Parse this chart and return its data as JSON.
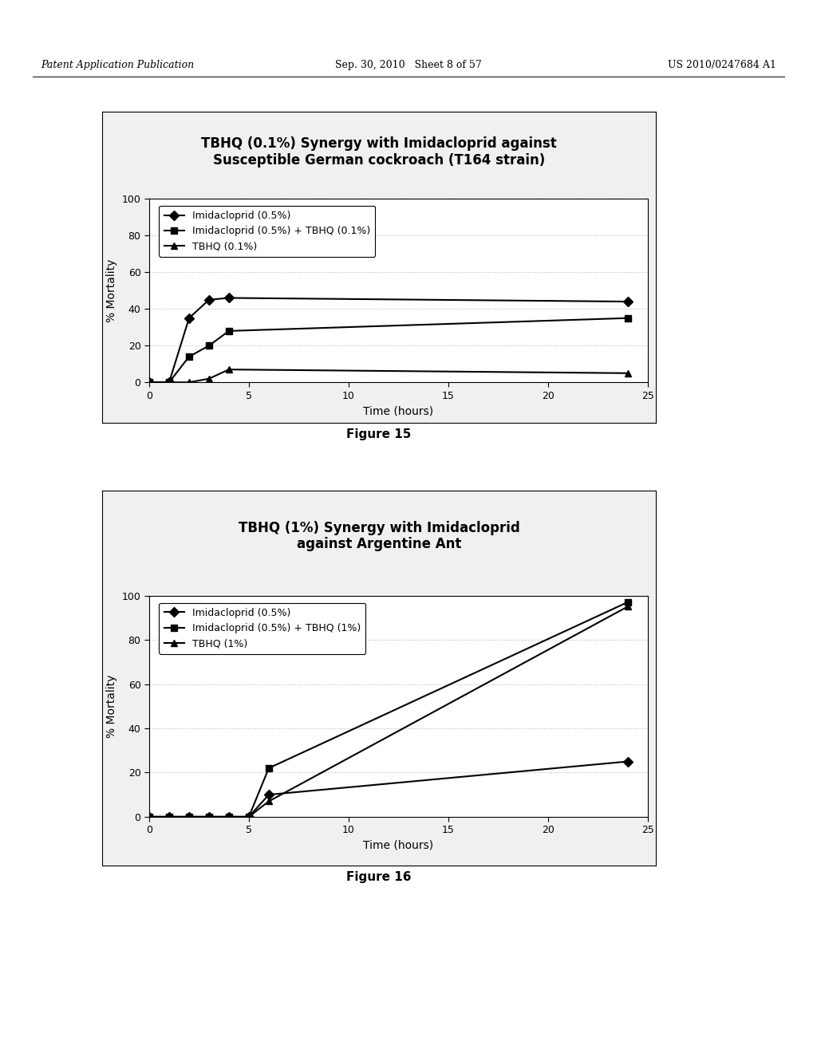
{
  "fig15": {
    "title_line1": "TBHQ (0.1%) Synergy with Imidacloprid against",
    "title_line2": "Susceptible German cockroach (T164 strain)",
    "xlabel": "Time (hours)",
    "ylabel": "% Mortality",
    "ylim": [
      0,
      100
    ],
    "xlim": [
      0,
      25
    ],
    "xticks": [
      0,
      5,
      10,
      15,
      20,
      25
    ],
    "yticks": [
      0,
      20,
      40,
      60,
      80,
      100
    ],
    "series": [
      {
        "label": "Imidacloprid (0.5%)",
        "x": [
          0,
          1,
          2,
          3,
          4,
          24
        ],
        "y": [
          0,
          0,
          35,
          45,
          46,
          44
        ],
        "marker": "D",
        "color": "#000000",
        "linestyle": "-"
      },
      {
        "label": "Imidacloprid (0.5%) + TBHQ (0.1%)",
        "x": [
          0,
          1,
          2,
          3,
          4,
          24
        ],
        "y": [
          0,
          0,
          14,
          20,
          28,
          35
        ],
        "marker": "s",
        "color": "#000000",
        "linestyle": "-"
      },
      {
        "label": "TBHQ (0.1%)",
        "x": [
          0,
          1,
          2,
          3,
          4,
          24
        ],
        "y": [
          0,
          0,
          0,
          2,
          7,
          5
        ],
        "marker": "^",
        "color": "#000000",
        "linestyle": "-"
      }
    ],
    "figure_label": "Figure 15",
    "grid_color": "#bbbbbb",
    "grid_linestyle": ":"
  },
  "fig16": {
    "title_line1": "TBHQ (1%) Synergy with Imidacloprid",
    "title_line2": "against Argentine Ant",
    "xlabel": "Time (hours)",
    "ylabel": "% Mortality",
    "ylim": [
      0,
      100
    ],
    "xlim": [
      0,
      25
    ],
    "xticks": [
      0,
      5,
      10,
      15,
      20,
      25
    ],
    "yticks": [
      0,
      20,
      40,
      60,
      80,
      100
    ],
    "series": [
      {
        "label": "Imidacloprid (0.5%)",
        "x": [
          0,
          1,
          2,
          3,
          4,
          5,
          6,
          24
        ],
        "y": [
          0,
          0,
          0,
          0,
          0,
          0,
          10,
          25
        ],
        "marker": "D",
        "color": "#000000",
        "linestyle": "-"
      },
      {
        "label": "Imidacloprid (0.5%) + TBHQ (1%)",
        "x": [
          0,
          1,
          2,
          3,
          4,
          5,
          6,
          24
        ],
        "y": [
          0,
          0,
          0,
          0,
          0,
          0,
          22,
          97
        ],
        "marker": "s",
        "color": "#000000",
        "linestyle": "-"
      },
      {
        "label": "TBHQ (1%)",
        "x": [
          0,
          1,
          2,
          3,
          4,
          5,
          6,
          24
        ],
        "y": [
          0,
          0,
          0,
          0,
          0,
          0,
          7,
          95
        ],
        "marker": "^",
        "color": "#000000",
        "linestyle": "-"
      }
    ],
    "figure_label": "Figure 16",
    "grid_color": "#bbbbbb",
    "grid_linestyle": ":"
  },
  "page_header": {
    "left": "Patent Application Publication",
    "center": "Sep. 30, 2010   Sheet 8 of 57",
    "right": "US 2010/0247684 A1"
  },
  "background_color": "#ffffff",
  "marker_size": 6,
  "linewidth": 1.5,
  "title_fontsize": 12,
  "axis_label_fontsize": 10,
  "tick_fontsize": 9,
  "legend_fontsize": 9,
  "figure_label_fontsize": 11
}
